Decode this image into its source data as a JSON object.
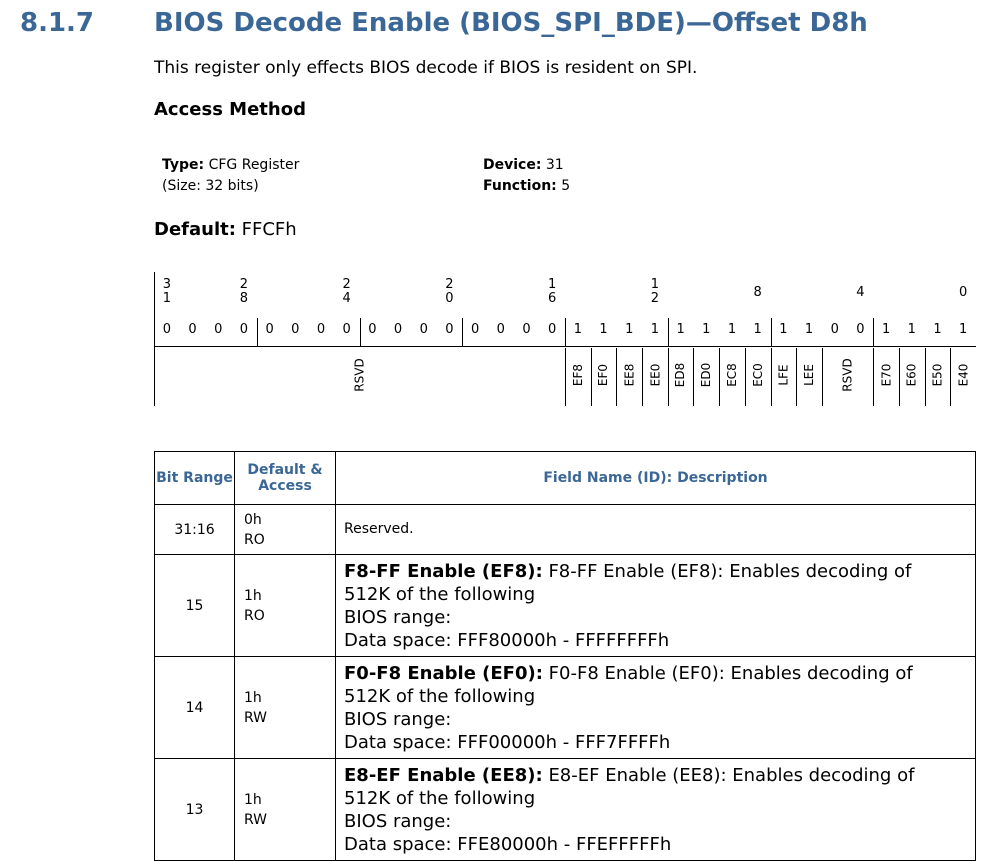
{
  "section": {
    "number": "8.1.7",
    "title": "BIOS Decode Enable (BIOS_SPI_BDE)—Offset D8h"
  },
  "intro": "This register only effects BIOS decode if BIOS is resident on SPI.",
  "access_heading": "Access Method",
  "access": {
    "type_label": "Type:",
    "type_value": "CFG Register",
    "size": "(Size: 32 bits)",
    "device_label": "Device:",
    "device_value": "31",
    "function_label": "Function:",
    "function_value": "5"
  },
  "default": {
    "label": "Default:",
    "value": "FFCFh"
  },
  "register": {
    "ticks": [
      {
        "l1": "3",
        "l2": "1"
      },
      {
        "l1": "2",
        "l2": "8"
      },
      {
        "l1": "2",
        "l2": "4"
      },
      {
        "l1": "2",
        "l2": "0"
      },
      {
        "l1": "1",
        "l2": "6"
      },
      {
        "l1": "1",
        "l2": "2"
      },
      {
        "l1": "8",
        "l2": ""
      },
      {
        "l1": "4",
        "l2": ""
      },
      {
        "l1": "0",
        "l2": ""
      }
    ],
    "bits": [
      "0",
      "0",
      "0",
      "0",
      "0",
      "0",
      "0",
      "0",
      "0",
      "0",
      "0",
      "0",
      "0",
      "0",
      "0",
      "0",
      "1",
      "1",
      "1",
      "1",
      "1",
      "1",
      "1",
      "1",
      "1",
      "1",
      "0",
      "0",
      "1",
      "1",
      "1",
      "1"
    ],
    "fields": [
      "RSVD",
      "EF8",
      "EF0",
      "EE8",
      "EE0",
      "ED8",
      "ED0",
      "EC8",
      "EC0",
      "LFE",
      "LEE",
      "RSVD",
      "E70",
      "E60",
      "E50",
      "E40"
    ]
  },
  "table": {
    "headers": {
      "bit_range": "Bit Range",
      "default_access": "Default & Access",
      "field": "Field Name (ID): Description"
    },
    "rows": [
      {
        "bits": "31:16",
        "default": "0h",
        "access": "RO",
        "name": "",
        "desc1": "Reserved.",
        "desc2": "",
        "desc3": "",
        "desc4": ""
      },
      {
        "bits": "15",
        "default": "1h",
        "access": "RO",
        "name": "F8-FF Enable (EF8):",
        "desc1": "F8-FF Enable (EF8): Enables decoding of",
        "desc2": "512K of the following",
        "desc3": "BIOS range:",
        "desc4": "Data space: FFF80000h - FFFFFFFFh"
      },
      {
        "bits": "14",
        "default": "1h",
        "access": "RW",
        "name": "F0-F8 Enable (EF0):",
        "desc1": "F0-F8 Enable (EF0): Enables decoding of",
        "desc2": "512K of the following",
        "desc3": "BIOS range:",
        "desc4": "Data space: FFF00000h - FFF7FFFFh"
      },
      {
        "bits": "13",
        "default": "1h",
        "access": "RW",
        "name": "E8-EF Enable (EE8):",
        "desc1": "E8-EF Enable (EE8): Enables decoding of",
        "desc2": "512K of the following",
        "desc3": "BIOS range:",
        "desc4": "Data space: FFE80000h - FFEFFFFFh"
      }
    ]
  }
}
